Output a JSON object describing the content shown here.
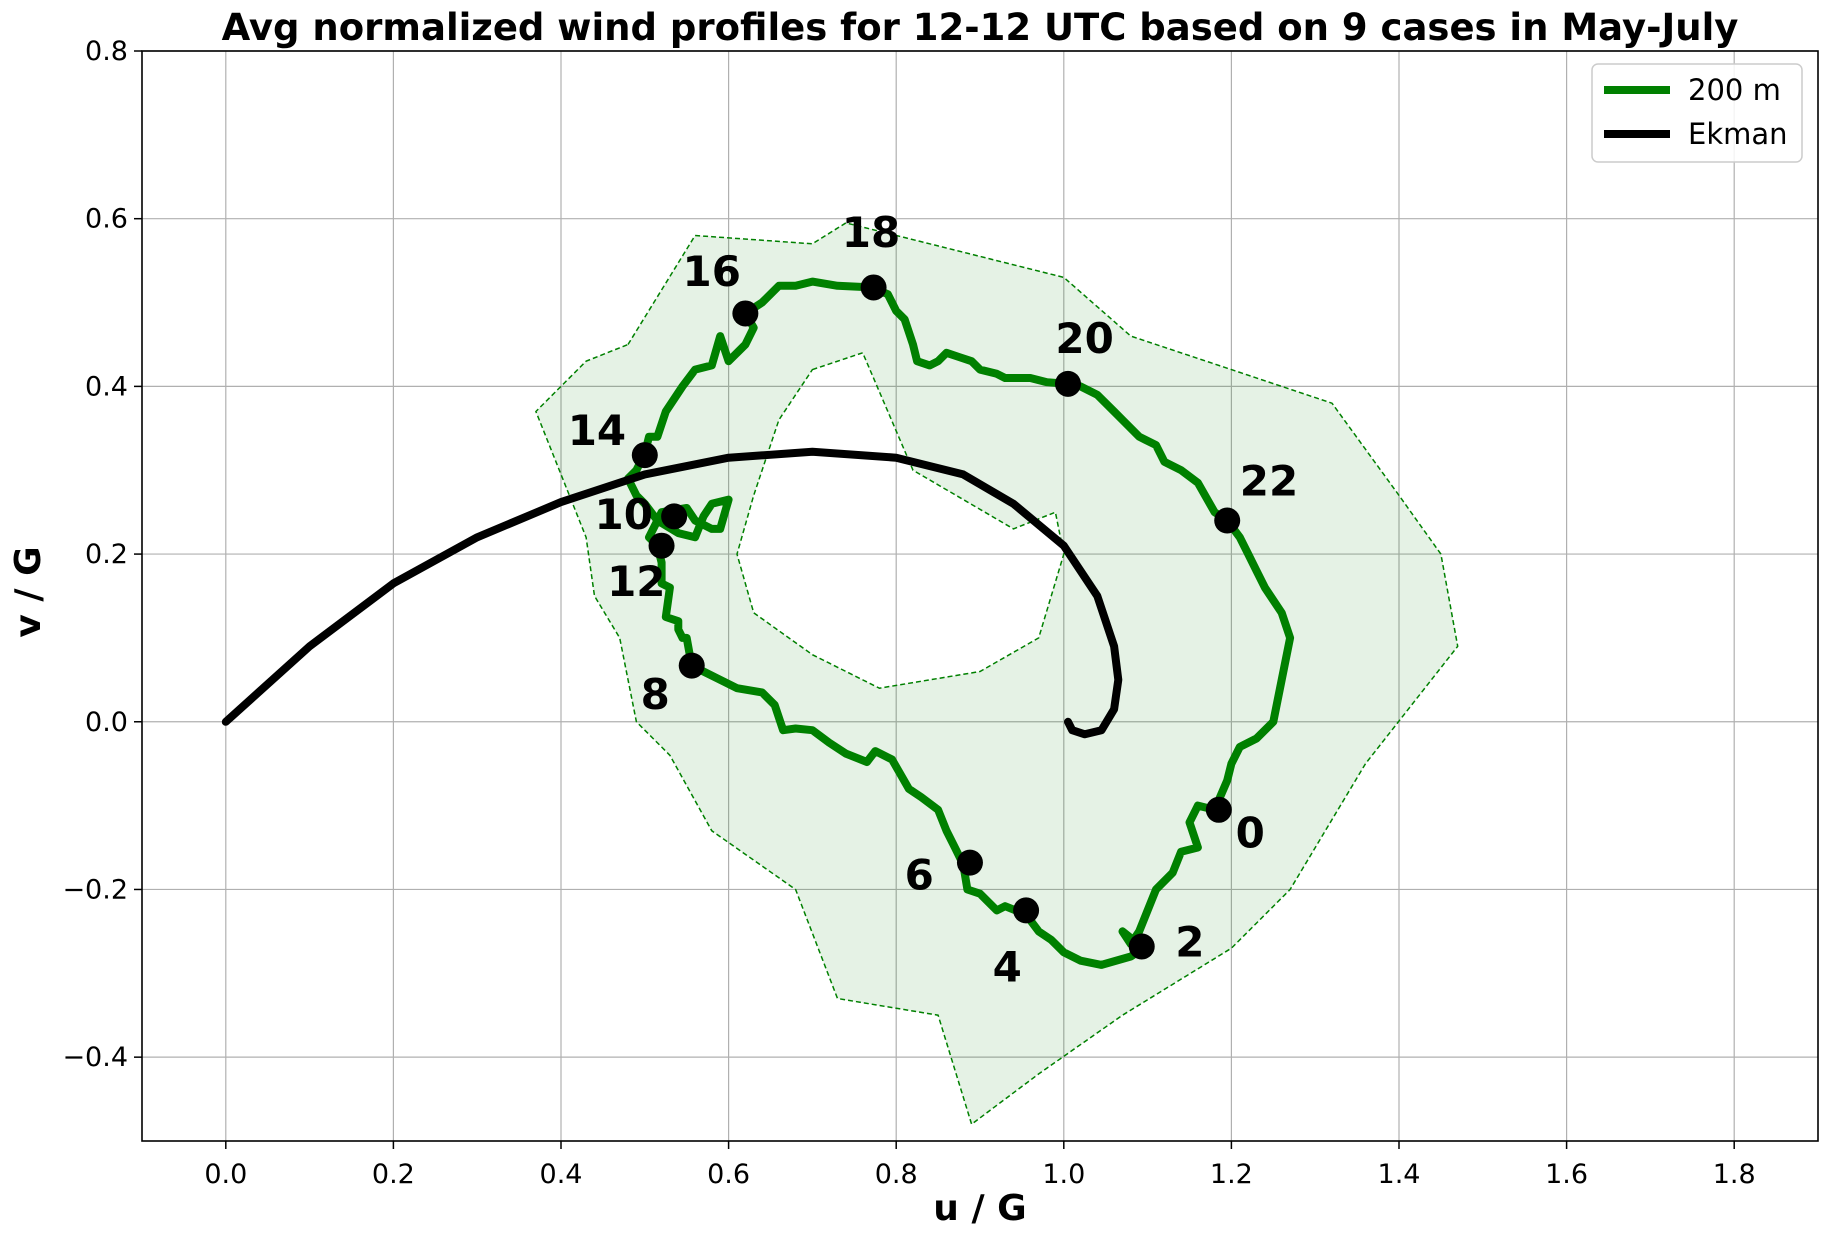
{
  "chart_data": {
    "type": "line",
    "title": "Avg normalized wind profiles for 12-12 UTC based on 9 cases in May-July",
    "xlabel": "u / G",
    "ylabel": "v / G",
    "xlim": [
      -0.1,
      1.9
    ],
    "ylim": [
      -0.5,
      0.8
    ],
    "xticks": [
      "0.0",
      "0.2",
      "0.4",
      "0.6",
      "0.8",
      "1.0",
      "1.2",
      "1.4",
      "1.6",
      "1.8"
    ],
    "yticks": [
      "−0.4",
      "−0.2",
      "0.0",
      "0.2",
      "0.4",
      "0.6",
      "0.8"
    ],
    "grid": true,
    "legend_position": "top-right",
    "series": [
      {
        "name": "200 m",
        "color": "#008000",
        "points": [
          [
            1.18,
            -0.105
          ],
          [
            1.16,
            -0.1
          ],
          [
            1.15,
            -0.12
          ],
          [
            1.16,
            -0.15
          ],
          [
            1.14,
            -0.155
          ],
          [
            1.13,
            -0.18
          ],
          [
            1.11,
            -0.2
          ],
          [
            1.09,
            -0.25
          ],
          [
            1.08,
            -0.265
          ],
          [
            1.07,
            -0.25
          ],
          [
            1.095,
            -0.27
          ],
          [
            1.08,
            -0.28
          ],
          [
            1.045,
            -0.29
          ],
          [
            1.02,
            -0.285
          ],
          [
            1.0,
            -0.275
          ],
          [
            0.985,
            -0.26
          ],
          [
            0.97,
            -0.25
          ],
          [
            0.955,
            -0.23
          ],
          [
            0.93,
            -0.22
          ],
          [
            0.92,
            -0.225
          ],
          [
            0.9,
            -0.205
          ],
          [
            0.885,
            -0.2
          ],
          [
            0.88,
            -0.17
          ],
          [
            0.87,
            -0.15
          ],
          [
            0.86,
            -0.13
          ],
          [
            0.85,
            -0.105
          ],
          [
            0.83,
            -0.09
          ],
          [
            0.815,
            -0.08
          ],
          [
            0.795,
            -0.045
          ],
          [
            0.775,
            -0.035
          ],
          [
            0.765,
            -0.048
          ],
          [
            0.74,
            -0.038
          ],
          [
            0.72,
            -0.025
          ],
          [
            0.7,
            -0.01
          ],
          [
            0.68,
            -0.008
          ],
          [
            0.665,
            -0.01
          ],
          [
            0.655,
            0.02
          ],
          [
            0.64,
            0.035
          ],
          [
            0.61,
            0.04
          ],
          [
            0.59,
            0.05
          ],
          [
            0.57,
            0.06
          ],
          [
            0.556,
            0.067
          ],
          [
            0.55,
            0.1
          ],
          [
            0.545,
            0.1
          ],
          [
            0.54,
            0.11
          ],
          [
            0.54,
            0.12
          ],
          [
            0.525,
            0.125
          ],
          [
            0.53,
            0.16
          ],
          [
            0.52,
            0.165
          ],
          [
            0.52,
            0.19
          ],
          [
            0.515,
            0.21
          ],
          [
            0.505,
            0.22
          ],
          [
            0.52,
            0.25
          ],
          [
            0.55,
            0.255
          ],
          [
            0.56,
            0.24
          ],
          [
            0.58,
            0.23
          ],
          [
            0.59,
            0.23
          ],
          [
            0.6,
            0.265
          ],
          [
            0.58,
            0.26
          ],
          [
            0.57,
            0.245
          ],
          [
            0.56,
            0.22
          ],
          [
            0.54,
            0.225
          ],
          [
            0.515,
            0.24
          ],
          [
            0.5,
            0.26
          ],
          [
            0.49,
            0.27
          ],
          [
            0.48,
            0.29
          ],
          [
            0.49,
            0.3
          ],
          [
            0.5,
            0.32
          ],
          [
            0.505,
            0.34
          ],
          [
            0.515,
            0.34
          ],
          [
            0.525,
            0.37
          ],
          [
            0.545,
            0.4
          ],
          [
            0.56,
            0.42
          ],
          [
            0.58,
            0.425
          ],
          [
            0.59,
            0.46
          ],
          [
            0.6,
            0.43
          ],
          [
            0.62,
            0.45
          ],
          [
            0.63,
            0.47
          ],
          [
            0.62,
            0.487
          ],
          [
            0.64,
            0.5
          ],
          [
            0.66,
            0.52
          ],
          [
            0.68,
            0.52
          ],
          [
            0.7,
            0.525
          ],
          [
            0.73,
            0.52
          ],
          [
            0.77,
            0.518
          ],
          [
            0.79,
            0.51
          ],
          [
            0.8,
            0.49
          ],
          [
            0.81,
            0.48
          ],
          [
            0.82,
            0.45
          ],
          [
            0.825,
            0.43
          ],
          [
            0.84,
            0.425
          ],
          [
            0.85,
            0.43
          ],
          [
            0.86,
            0.44
          ],
          [
            0.875,
            0.435
          ],
          [
            0.89,
            0.43
          ],
          [
            0.9,
            0.42
          ],
          [
            0.92,
            0.415
          ],
          [
            0.93,
            0.41
          ],
          [
            0.96,
            0.41
          ],
          [
            0.98,
            0.405
          ],
          [
            1.005,
            0.403
          ],
          [
            1.02,
            0.4
          ],
          [
            1.04,
            0.39
          ],
          [
            1.06,
            0.37
          ],
          [
            1.07,
            0.36
          ],
          [
            1.09,
            0.34
          ],
          [
            1.11,
            0.33
          ],
          [
            1.12,
            0.31
          ],
          [
            1.14,
            0.3
          ],
          [
            1.16,
            0.285
          ],
          [
            1.18,
            0.25
          ],
          [
            1.195,
            0.24
          ],
          [
            1.21,
            0.22
          ],
          [
            1.22,
            0.2
          ],
          [
            1.23,
            0.18
          ],
          [
            1.24,
            0.16
          ],
          [
            1.26,
            0.13
          ],
          [
            1.27,
            0.1
          ],
          [
            1.26,
            0.05
          ],
          [
            1.25,
            0.0
          ],
          [
            1.23,
            -0.02
          ],
          [
            1.21,
            -0.03
          ],
          [
            1.2,
            -0.05
          ],
          [
            1.195,
            -0.07
          ],
          [
            1.18,
            -0.105
          ]
        ]
      },
      {
        "name": "Ekman",
        "color": "#000000",
        "points": [
          [
            0.0,
            0.0
          ],
          [
            0.1,
            0.09
          ],
          [
            0.2,
            0.165
          ],
          [
            0.3,
            0.22
          ],
          [
            0.4,
            0.262
          ],
          [
            0.5,
            0.295
          ],
          [
            0.6,
            0.315
          ],
          [
            0.7,
            0.322
          ],
          [
            0.8,
            0.315
          ],
          [
            0.88,
            0.295
          ],
          [
            0.94,
            0.26
          ],
          [
            1.0,
            0.21
          ],
          [
            1.04,
            0.15
          ],
          [
            1.06,
            0.09
          ],
          [
            1.065,
            0.05
          ],
          [
            1.06,
            0.015
          ],
          [
            1.045,
            -0.01
          ],
          [
            1.025,
            -0.015
          ],
          [
            1.01,
            -0.01
          ],
          [
            1.005,
            0.0
          ]
        ]
      }
    ],
    "band": [
      [
        0.48,
        0.45
      ],
      [
        0.56,
        0.58
      ],
      [
        0.7,
        0.57
      ],
      [
        0.74,
        0.595
      ],
      [
        0.84,
        0.57
      ],
      [
        1.0,
        0.53
      ],
      [
        1.08,
        0.46
      ],
      [
        1.2,
        0.42
      ],
      [
        1.32,
        0.38
      ],
      [
        1.4,
        0.27
      ],
      [
        1.45,
        0.2
      ],
      [
        1.47,
        0.09
      ],
      [
        1.36,
        -0.05
      ],
      [
        1.27,
        -0.2
      ],
      [
        1.2,
        -0.27
      ],
      [
        1.07,
        -0.35
      ],
      [
        0.97,
        -0.42
      ],
      [
        0.89,
        -0.48
      ],
      [
        0.85,
        -0.35
      ],
      [
        0.73,
        -0.33
      ],
      [
        0.68,
        -0.2
      ],
      [
        0.58,
        -0.13
      ],
      [
        0.53,
        -0.04
      ],
      [
        0.49,
        0.0
      ],
      [
        0.47,
        0.1
      ],
      [
        0.44,
        0.15
      ],
      [
        0.43,
        0.22
      ],
      [
        0.37,
        0.37
      ],
      [
        0.43,
        0.43
      ]
    ],
    "band_hole": [
      [
        0.7,
        0.42
      ],
      [
        0.76,
        0.44
      ],
      [
        0.82,
        0.3
      ],
      [
        0.94,
        0.23
      ],
      [
        0.99,
        0.25
      ],
      [
        1.0,
        0.2
      ],
      [
        0.97,
        0.1
      ],
      [
        0.9,
        0.06
      ],
      [
        0.78,
        0.04
      ],
      [
        0.7,
        0.08
      ],
      [
        0.63,
        0.13
      ],
      [
        0.61,
        0.2
      ],
      [
        0.63,
        0.27
      ],
      [
        0.66,
        0.36
      ]
    ],
    "markers": [
      {
        "label": "0",
        "x": 1.185,
        "y": -0.105,
        "label_x": 1.205,
        "label_y": -0.15
      },
      {
        "label": "2",
        "x": 1.093,
        "y": -0.268,
        "label_x": 1.133,
        "label_y": -0.28
      },
      {
        "label": "4",
        "x": 0.955,
        "y": -0.225,
        "label_x": 0.915,
        "label_y": -0.31
      },
      {
        "label": "6",
        "x": 0.888,
        "y": -0.168,
        "label_x": 0.81,
        "label_y": -0.2
      },
      {
        "label": "8",
        "x": 0.556,
        "y": 0.067,
        "label_x": 0.495,
        "label_y": 0.015
      },
      {
        "label": "10",
        "x": 0.535,
        "y": 0.245,
        "label_x": 0.44,
        "label_y": 0.23
      },
      {
        "label": "12",
        "x": 0.52,
        "y": 0.21,
        "label_x": 0.455,
        "label_y": 0.15
      },
      {
        "label": "14",
        "x": 0.5,
        "y": 0.318,
        "label_x": 0.408,
        "label_y": 0.33
      },
      {
        "label": "16",
        "x": 0.62,
        "y": 0.487,
        "label_x": 0.545,
        "label_y": 0.52
      },
      {
        "label": "18",
        "x": 0.773,
        "y": 0.518,
        "label_x": 0.735,
        "label_y": 0.566
      },
      {
        "label": "20",
        "x": 1.005,
        "y": 0.403,
        "label_x": 0.99,
        "label_y": 0.44
      },
      {
        "label": "22",
        "x": 1.195,
        "y": 0.24,
        "label_x": 1.21,
        "label_y": 0.27
      }
    ]
  }
}
